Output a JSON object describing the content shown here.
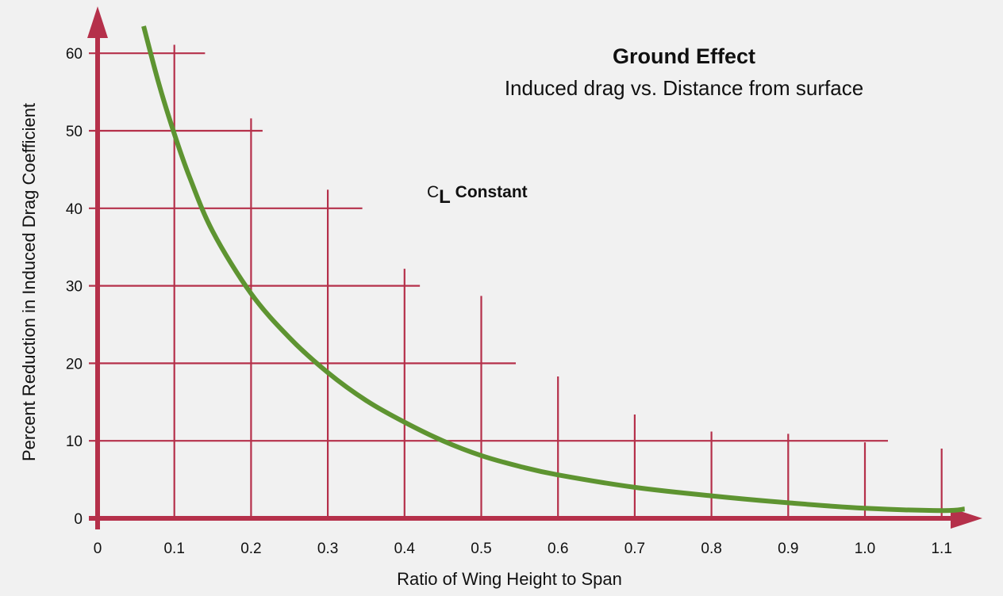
{
  "chart_data": {
    "type": "line",
    "title": "Ground Effect",
    "subtitle": "Induced drag  vs. Distance from surface",
    "annotation": {
      "prefix": "C",
      "subscript": "L",
      "suffix": " Constant"
    },
    "xlabel": "Ratio of Wing Height to Span",
    "ylabel": "Percent Reduction in Induced Drag Coefficient",
    "x_ticks": [
      "0",
      "0.1",
      "0.2",
      "0.3",
      "0.4",
      "0.5",
      "0.6",
      "0.7",
      "0.8",
      "0.9",
      "1.0",
      "1.1"
    ],
    "y_ticks": [
      "0",
      "10",
      "20",
      "30",
      "40",
      "50",
      "60"
    ],
    "xlim": [
      0,
      1.15
    ],
    "ylim": [
      0,
      64
    ],
    "grid": true,
    "colors": {
      "axis": "#b5304a",
      "grid": "#b5304a",
      "curve": "#5e9431",
      "background": "#f1f1f1"
    },
    "series": [
      {
        "x": [
          0.06,
          0.08,
          0.1,
          0.12,
          0.15,
          0.2,
          0.25,
          0.3,
          0.35,
          0.4,
          0.45,
          0.5,
          0.55,
          0.6,
          0.7,
          0.8,
          0.9,
          1.0,
          1.1,
          1.13
        ],
        "values": [
          63.5,
          56,
          49.6,
          44,
          37,
          29,
          23.3,
          18.8,
          15.2,
          12.4,
          10,
          8.1,
          6.7,
          5.6,
          4,
          2.9,
          2,
          1.3,
          1,
          1.2
        ]
      }
    ]
  }
}
